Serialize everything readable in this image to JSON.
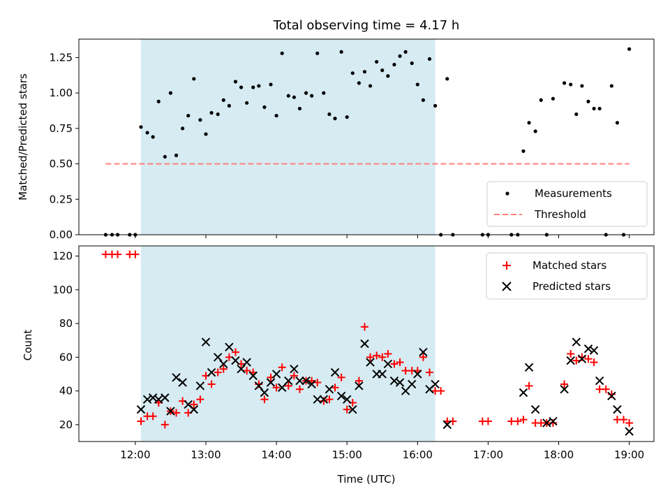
{
  "chart_data": [
    {
      "type": "scatter",
      "title": "Total observing time = 4.17 h",
      "xlabel": "",
      "ylabel": "Matched/Predicted stars",
      "xlim": [
        11.2,
        19.35
      ],
      "ylim": [
        0,
        1.38
      ],
      "yticks": [
        0.0,
        0.25,
        0.5,
        0.75,
        1.0,
        1.25
      ],
      "ytick_labels": [
        "0.00",
        "0.25",
        "0.50",
        "0.75",
        "1.00",
        "1.25"
      ],
      "shaded_span": {
        "x_start": 12.08,
        "x_end": 16.25,
        "color": "#add8e6"
      },
      "legend": {
        "position": "bottom-right",
        "entries": [
          "Measurements",
          "Threshold"
        ]
      },
      "threshold": {
        "name": "Threshold",
        "y": 0.5,
        "x_start": 11.58,
        "x_end": 19.0,
        "color": "#ff7f7f",
        "style": "dashed"
      },
      "series": [
        {
          "name": "Measurements",
          "marker": "dot",
          "color": "#000000",
          "points": [
            [
              11.58,
              0
            ],
            [
              11.67,
              0
            ],
            [
              11.75,
              0
            ],
            [
              11.92,
              0
            ],
            [
              12.0,
              0
            ],
            [
              12.08,
              0.76
            ],
            [
              12.17,
              0.72
            ],
            [
              12.25,
              0.69
            ],
            [
              12.33,
              0.94
            ],
            [
              12.42,
              0.55
            ],
            [
              12.5,
              1.0
            ],
            [
              12.58,
              0.56
            ],
            [
              12.67,
              0.75
            ],
            [
              12.75,
              0.84
            ],
            [
              12.83,
              1.1
            ],
            [
              12.92,
              0.81
            ],
            [
              13.0,
              0.71
            ],
            [
              13.08,
              0.86
            ],
            [
              13.17,
              0.85
            ],
            [
              13.25,
              0.95
            ],
            [
              13.33,
              0.91
            ],
            [
              13.42,
              1.08
            ],
            [
              13.5,
              1.04
            ],
            [
              13.58,
              0.93
            ],
            [
              13.67,
              1.04
            ],
            [
              13.75,
              1.05
            ],
            [
              13.83,
              0.9
            ],
            [
              13.92,
              1.06
            ],
            [
              14.0,
              0.84
            ],
            [
              14.08,
              1.28
            ],
            [
              14.17,
              0.98
            ],
            [
              14.25,
              0.97
            ],
            [
              14.33,
              0.89
            ],
            [
              14.42,
              1.0
            ],
            [
              14.5,
              0.98
            ],
            [
              14.58,
              1.28
            ],
            [
              14.67,
              1.0
            ],
            [
              14.75,
              0.85
            ],
            [
              14.83,
              0.82
            ],
            [
              14.92,
              1.29
            ],
            [
              15.0,
              0.83
            ],
            [
              15.08,
              1.14
            ],
            [
              15.17,
              1.07
            ],
            [
              15.25,
              1.15
            ],
            [
              15.33,
              1.05
            ],
            [
              15.42,
              1.22
            ],
            [
              15.5,
              1.16
            ],
            [
              15.58,
              1.12
            ],
            [
              15.67,
              1.2
            ],
            [
              15.75,
              1.26
            ],
            [
              15.83,
              1.29
            ],
            [
              15.92,
              1.21
            ],
            [
              16.0,
              1.06
            ],
            [
              16.08,
              0.95
            ],
            [
              16.17,
              1.24
            ],
            [
              16.25,
              0.91
            ],
            [
              16.33,
              0
            ],
            [
              16.42,
              1.1
            ],
            [
              16.5,
              0
            ],
            [
              16.92,
              0
            ],
            [
              17.0,
              0
            ],
            [
              17.33,
              0
            ],
            [
              17.42,
              0
            ],
            [
              17.5,
              0.59
            ],
            [
              17.58,
              0.79
            ],
            [
              17.67,
              0.73
            ],
            [
              17.75,
              0.95
            ],
            [
              17.83,
              0
            ],
            [
              17.92,
              0.96
            ],
            [
              18.08,
              1.07
            ],
            [
              18.17,
              1.06
            ],
            [
              18.25,
              0.85
            ],
            [
              18.33,
              1.05
            ],
            [
              18.42,
              0.94
            ],
            [
              18.5,
              0.89
            ],
            [
              18.58,
              0.89
            ],
            [
              18.67,
              0
            ],
            [
              18.75,
              1.05
            ],
            [
              18.83,
              0.79
            ],
            [
              18.92,
              0
            ],
            [
              19.0,
              1.31
            ]
          ]
        }
      ]
    },
    {
      "type": "scatter",
      "title": "",
      "xlabel": "Time (UTC)",
      "ylabel": "Count",
      "xlim": [
        11.2,
        19.35
      ],
      "ylim": [
        10,
        126
      ],
      "xticks": [
        12,
        13,
        14,
        15,
        16,
        17,
        18,
        19
      ],
      "xtick_labels": [
        "12:00",
        "13:00",
        "14:00",
        "15:00",
        "16:00",
        "17:00",
        "18:00",
        "19:00"
      ],
      "yticks": [
        20,
        40,
        60,
        80,
        100,
        120
      ],
      "ytick_labels": [
        "20",
        "40",
        "60",
        "80",
        "100",
        "120"
      ],
      "shaded_span": {
        "x_start": 12.08,
        "x_end": 16.25,
        "color": "#add8e6"
      },
      "legend": {
        "position": "top-right",
        "entries": [
          "Matched stars",
          "Predicted stars"
        ]
      },
      "series": [
        {
          "name": "Matched stars",
          "marker": "plus",
          "color": "#ff0000",
          "points": [
            [
              11.58,
              121
            ],
            [
              11.67,
              121
            ],
            [
              11.75,
              121
            ],
            [
              11.92,
              121
            ],
            [
              12.0,
              121
            ],
            [
              12.08,
              22
            ],
            [
              12.17,
              25
            ],
            [
              12.25,
              25
            ],
            [
              12.33,
              33
            ],
            [
              12.42,
              20
            ],
            [
              12.5,
              28
            ],
            [
              12.58,
              27
            ],
            [
              12.67,
              34
            ],
            [
              12.75,
              27
            ],
            [
              12.83,
              32
            ],
            [
              12.92,
              35
            ],
            [
              13.0,
              49
            ],
            [
              13.08,
              44
            ],
            [
              13.17,
              51
            ],
            [
              13.25,
              53
            ],
            [
              13.33,
              60
            ],
            [
              13.42,
              63
            ],
            [
              13.5,
              56
            ],
            [
              13.58,
              52
            ],
            [
              13.67,
              51
            ],
            [
              13.75,
              44
            ],
            [
              13.83,
              35
            ],
            [
              13.92,
              48
            ],
            [
              14.0,
              42
            ],
            [
              14.08,
              54
            ],
            [
              14.17,
              43
            ],
            [
              14.25,
              49
            ],
            [
              14.33,
              41
            ],
            [
              14.42,
              46
            ],
            [
              14.5,
              46
            ],
            [
              14.58,
              45
            ],
            [
              14.67,
              34
            ],
            [
              14.75,
              35
            ],
            [
              14.83,
              42
            ],
            [
              14.92,
              48
            ],
            [
              15.0,
              29
            ],
            [
              15.08,
              33
            ],
            [
              15.17,
              46
            ],
            [
              15.25,
              78
            ],
            [
              15.33,
              60
            ],
            [
              15.42,
              61
            ],
            [
              15.5,
              60
            ],
            [
              15.58,
              62
            ],
            [
              15.67,
              56
            ],
            [
              15.75,
              57
            ],
            [
              15.83,
              52
            ],
            [
              15.92,
              52
            ],
            [
              16.0,
              52
            ],
            [
              16.08,
              60
            ],
            [
              16.17,
              51
            ],
            [
              16.25,
              40
            ],
            [
              16.33,
              40
            ],
            [
              16.42,
              22
            ],
            [
              16.5,
              22
            ],
            [
              16.92,
              22
            ],
            [
              17.0,
              22
            ],
            [
              17.33,
              22
            ],
            [
              17.42,
              22
            ],
            [
              17.5,
              23
            ],
            [
              17.58,
              43
            ],
            [
              17.67,
              21
            ],
            [
              17.75,
              21
            ],
            [
              17.83,
              21
            ],
            [
              17.92,
              21
            ],
            [
              18.08,
              44
            ],
            [
              18.17,
              62
            ],
            [
              18.25,
              58
            ],
            [
              18.33,
              60
            ],
            [
              18.42,
              59
            ],
            [
              18.5,
              57
            ],
            [
              18.58,
              41
            ],
            [
              18.67,
              41
            ],
            [
              18.75,
              38
            ],
            [
              18.83,
              23
            ],
            [
              18.92,
              23
            ],
            [
              19.0,
              21
            ]
          ]
        },
        {
          "name": "Predicted stars",
          "marker": "x",
          "color": "#000000",
          "points": [
            [
              12.08,
              29
            ],
            [
              12.17,
              35
            ],
            [
              12.25,
              36
            ],
            [
              12.33,
              35
            ],
            [
              12.42,
              36
            ],
            [
              12.5,
              28
            ],
            [
              12.58,
              48
            ],
            [
              12.67,
              45
            ],
            [
              12.75,
              32
            ],
            [
              12.83,
              29
            ],
            [
              12.92,
              43
            ],
            [
              13.0,
              69
            ],
            [
              13.08,
              51
            ],
            [
              13.17,
              60
            ],
            [
              13.25,
              56
            ],
            [
              13.33,
              66
            ],
            [
              13.42,
              58
            ],
            [
              13.5,
              53
            ],
            [
              13.58,
              57
            ],
            [
              13.67,
              49
            ],
            [
              13.75,
              43
            ],
            [
              13.83,
              39
            ],
            [
              13.92,
              45
            ],
            [
              14.0,
              50
            ],
            [
              14.08,
              42
            ],
            [
              14.17,
              46
            ],
            [
              14.25,
              53
            ],
            [
              14.33,
              46
            ],
            [
              14.42,
              46
            ],
            [
              14.5,
              44
            ],
            [
              14.58,
              35
            ],
            [
              14.67,
              35
            ],
            [
              14.75,
              41
            ],
            [
              14.83,
              51
            ],
            [
              14.92,
              37
            ],
            [
              15.0,
              35
            ],
            [
              15.08,
              29
            ],
            [
              15.17,
              43
            ],
            [
              15.25,
              68
            ],
            [
              15.33,
              57
            ],
            [
              15.42,
              50
            ],
            [
              15.5,
              50
            ],
            [
              15.58,
              56
            ],
            [
              15.67,
              46
            ],
            [
              15.75,
              45
            ],
            [
              15.83,
              40
            ],
            [
              15.92,
              44
            ],
            [
              16.0,
              50
            ],
            [
              16.08,
              63
            ],
            [
              16.17,
              41
            ],
            [
              16.25,
              44
            ],
            [
              16.42,
              20
            ],
            [
              17.5,
              39
            ],
            [
              17.58,
              54
            ],
            [
              17.67,
              29
            ],
            [
              17.83,
              21
            ],
            [
              17.92,
              22
            ],
            [
              18.08,
              41
            ],
            [
              18.17,
              58
            ],
            [
              18.25,
              69
            ],
            [
              18.33,
              59
            ],
            [
              18.42,
              65
            ],
            [
              18.5,
              64
            ],
            [
              18.58,
              46
            ],
            [
              18.75,
              37
            ],
            [
              18.83,
              29
            ],
            [
              19.0,
              16
            ]
          ]
        }
      ]
    }
  ]
}
